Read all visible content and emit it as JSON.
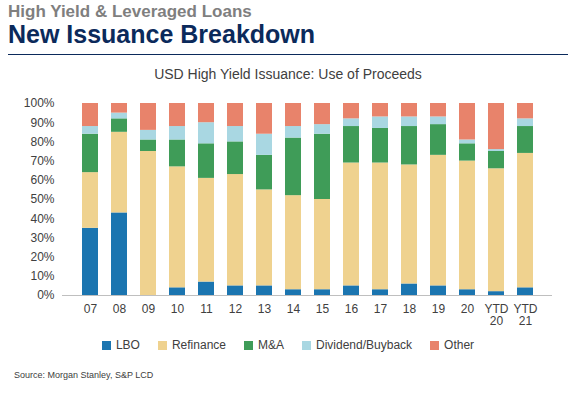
{
  "header": {
    "kicker": "High Yield & Leveraged Loans",
    "title": "New Issuance Breakdown"
  },
  "chart_data": {
    "type": "bar",
    "stacked": true,
    "title": "USD High Yield Issuance: Use of Proceeds",
    "source": "Source: Morgan Stanley, S&P LCD",
    "categories": [
      "07",
      "08",
      "09",
      "10",
      "11",
      "12",
      "13",
      "14",
      "15",
      "16",
      "17",
      "18",
      "19",
      "20",
      "YTD\n20",
      "YTD\n21"
    ],
    "series": [
      {
        "name": "LBO",
        "color": "#1b75b0",
        "values": [
          35,
          43,
          0,
          4,
          7,
          5,
          5,
          3,
          3,
          5,
          3,
          6,
          5,
          3,
          2,
          4
        ]
      },
      {
        "name": "Refinance",
        "color": "#efd28f",
        "values": [
          29,
          42,
          75,
          63,
          54,
          58,
          50,
          49,
          47,
          64,
          66,
          62,
          68,
          67,
          64,
          70
        ]
      },
      {
        "name": "M&A",
        "color": "#3f9c58",
        "values": [
          20,
          7,
          6,
          14,
          18,
          17,
          18,
          30,
          34,
          19,
          18,
          20,
          16,
          9,
          9,
          14
        ]
      },
      {
        "name": "Dividend/Buyback",
        "color": "#a9d7e2",
        "values": [
          4,
          3,
          5,
          7,
          11,
          8,
          11,
          6,
          5,
          4,
          6,
          5,
          4,
          2,
          1,
          4
        ]
      },
      {
        "name": "Other",
        "color": "#e8836b",
        "values": [
          12,
          5,
          14,
          12,
          10,
          12,
          16,
          12,
          11,
          8,
          7,
          7,
          7,
          19,
          24,
          8
        ]
      }
    ],
    "ylim": [
      0,
      100
    ],
    "yticks": [
      {
        "value": 0,
        "label": "0%"
      },
      {
        "value": 10,
        "label": "10%"
      },
      {
        "value": 20,
        "label": "20%"
      },
      {
        "value": 30,
        "label": "30%"
      },
      {
        "value": 40,
        "label": "40%"
      },
      {
        "value": 50,
        "label": "50%"
      },
      {
        "value": 60,
        "label": "60%"
      },
      {
        "value": 70,
        "label": "70%"
      },
      {
        "value": 80,
        "label": "80%"
      },
      {
        "value": 90,
        "label": "90%"
      },
      {
        "value": 100,
        "label": "100%"
      }
    ],
    "grid": false,
    "legend": "bottom"
  }
}
